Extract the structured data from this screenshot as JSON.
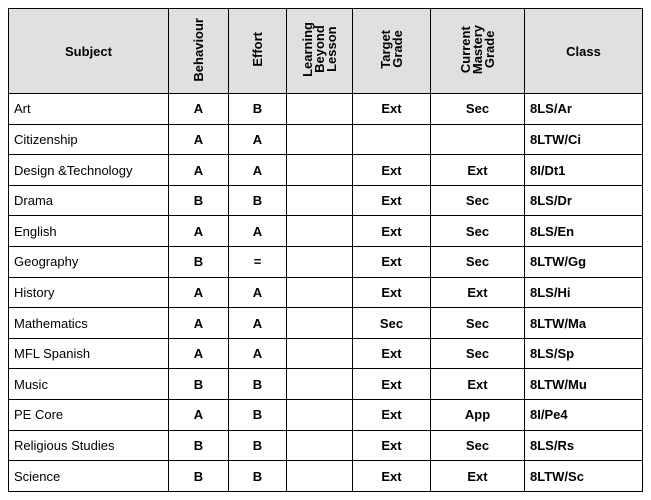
{
  "headers": {
    "subject": "Subject",
    "behaviour": "Behaviour",
    "effort": "Effort",
    "learning": "Learning\nBeyond\nLesson",
    "target": "Target\nGrade",
    "current": "Current\nMastery\nGrade",
    "class": "Class"
  },
  "rows": [
    {
      "subject": "Art",
      "behaviour": "A",
      "effort": "B",
      "learning": "",
      "target": "Ext",
      "current": "Sec",
      "class": "8LS/Ar"
    },
    {
      "subject": "Citizenship",
      "behaviour": "A",
      "effort": "A",
      "learning": "",
      "target": "",
      "current": "",
      "class": "8LTW/Ci"
    },
    {
      "subject": "Design &Technology",
      "behaviour": "A",
      "effort": "A",
      "learning": "",
      "target": "Ext",
      "current": "Ext",
      "class": "8I/Dt1"
    },
    {
      "subject": "Drama",
      "behaviour": "B",
      "effort": "B",
      "learning": "",
      "target": "Ext",
      "current": "Sec",
      "class": "8LS/Dr"
    },
    {
      "subject": "English",
      "behaviour": "A",
      "effort": "A",
      "learning": "",
      "target": "Ext",
      "current": "Sec",
      "class": "8LS/En"
    },
    {
      "subject": "Geography",
      "behaviour": "B",
      "effort": "=",
      "learning": "",
      "target": "Ext",
      "current": "Sec",
      "class": "8LTW/Gg"
    },
    {
      "subject": "History",
      "behaviour": "A",
      "effort": "A",
      "learning": "",
      "target": "Ext",
      "current": "Ext",
      "class": "8LS/Hi"
    },
    {
      "subject": "Mathematics",
      "behaviour": "A",
      "effort": "A",
      "learning": "",
      "target": "Sec",
      "current": "Sec",
      "class": "8LTW/Ma"
    },
    {
      "subject": "MFL Spanish",
      "behaviour": "A",
      "effort": "A",
      "learning": "",
      "target": "Ext",
      "current": "Sec",
      "class": "8LS/Sp"
    },
    {
      "subject": "Music",
      "behaviour": "B",
      "effort": "B",
      "learning": "",
      "target": "Ext",
      "current": "Ext",
      "class": "8LTW/Mu"
    },
    {
      "subject": "PE Core",
      "behaviour": "A",
      "effort": "B",
      "learning": "",
      "target": "Ext",
      "current": "App",
      "class": "8I/Pe4"
    },
    {
      "subject": "Religious Studies",
      "behaviour": "B",
      "effort": "B",
      "learning": "",
      "target": "Ext",
      "current": "Sec",
      "class": "8LS/Rs"
    },
    {
      "subject": "Science",
      "behaviour": "B",
      "effort": "B",
      "learning": "",
      "target": "Ext",
      "current": "Ext",
      "class": "8LTW/Sc"
    }
  ]
}
